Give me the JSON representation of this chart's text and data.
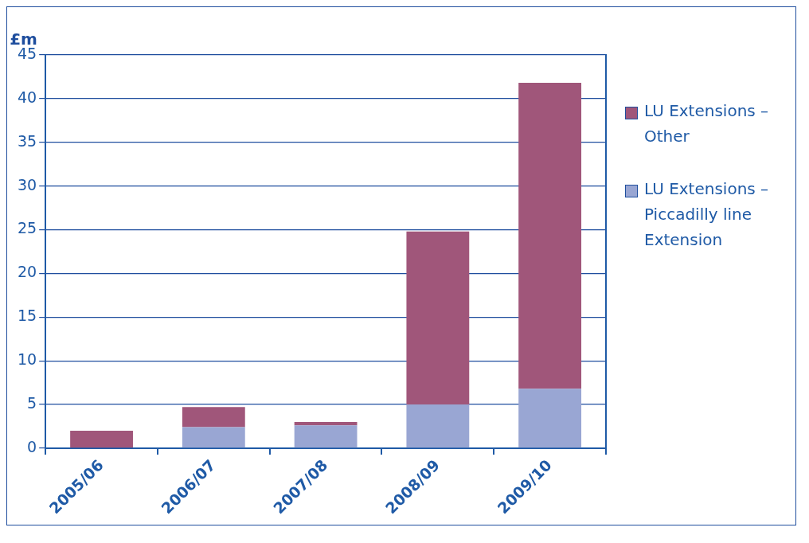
{
  "chart_data": {
    "type": "bar",
    "ylabel": "£m",
    "categories": [
      "2005/06",
      "2006/07",
      "2007/08",
      "2008/09",
      "2009/10"
    ],
    "stacked": true,
    "series": [
      {
        "name": "LU Extensions – Piccadilly line Extension",
        "color": "#99a6d3",
        "values": [
          0,
          2.4,
          2.6,
          5.0,
          6.8
        ]
      },
      {
        "name": "LU Extensions – Other",
        "color": "#a0567a",
        "values": [
          2.0,
          2.3,
          0.4,
          19.8,
          35.0
        ]
      }
    ],
    "ylim": [
      0,
      45
    ],
    "yticks": [
      0,
      5,
      10,
      15,
      20,
      25,
      30,
      35,
      40,
      45
    ],
    "grid": "y",
    "legend": "right"
  }
}
